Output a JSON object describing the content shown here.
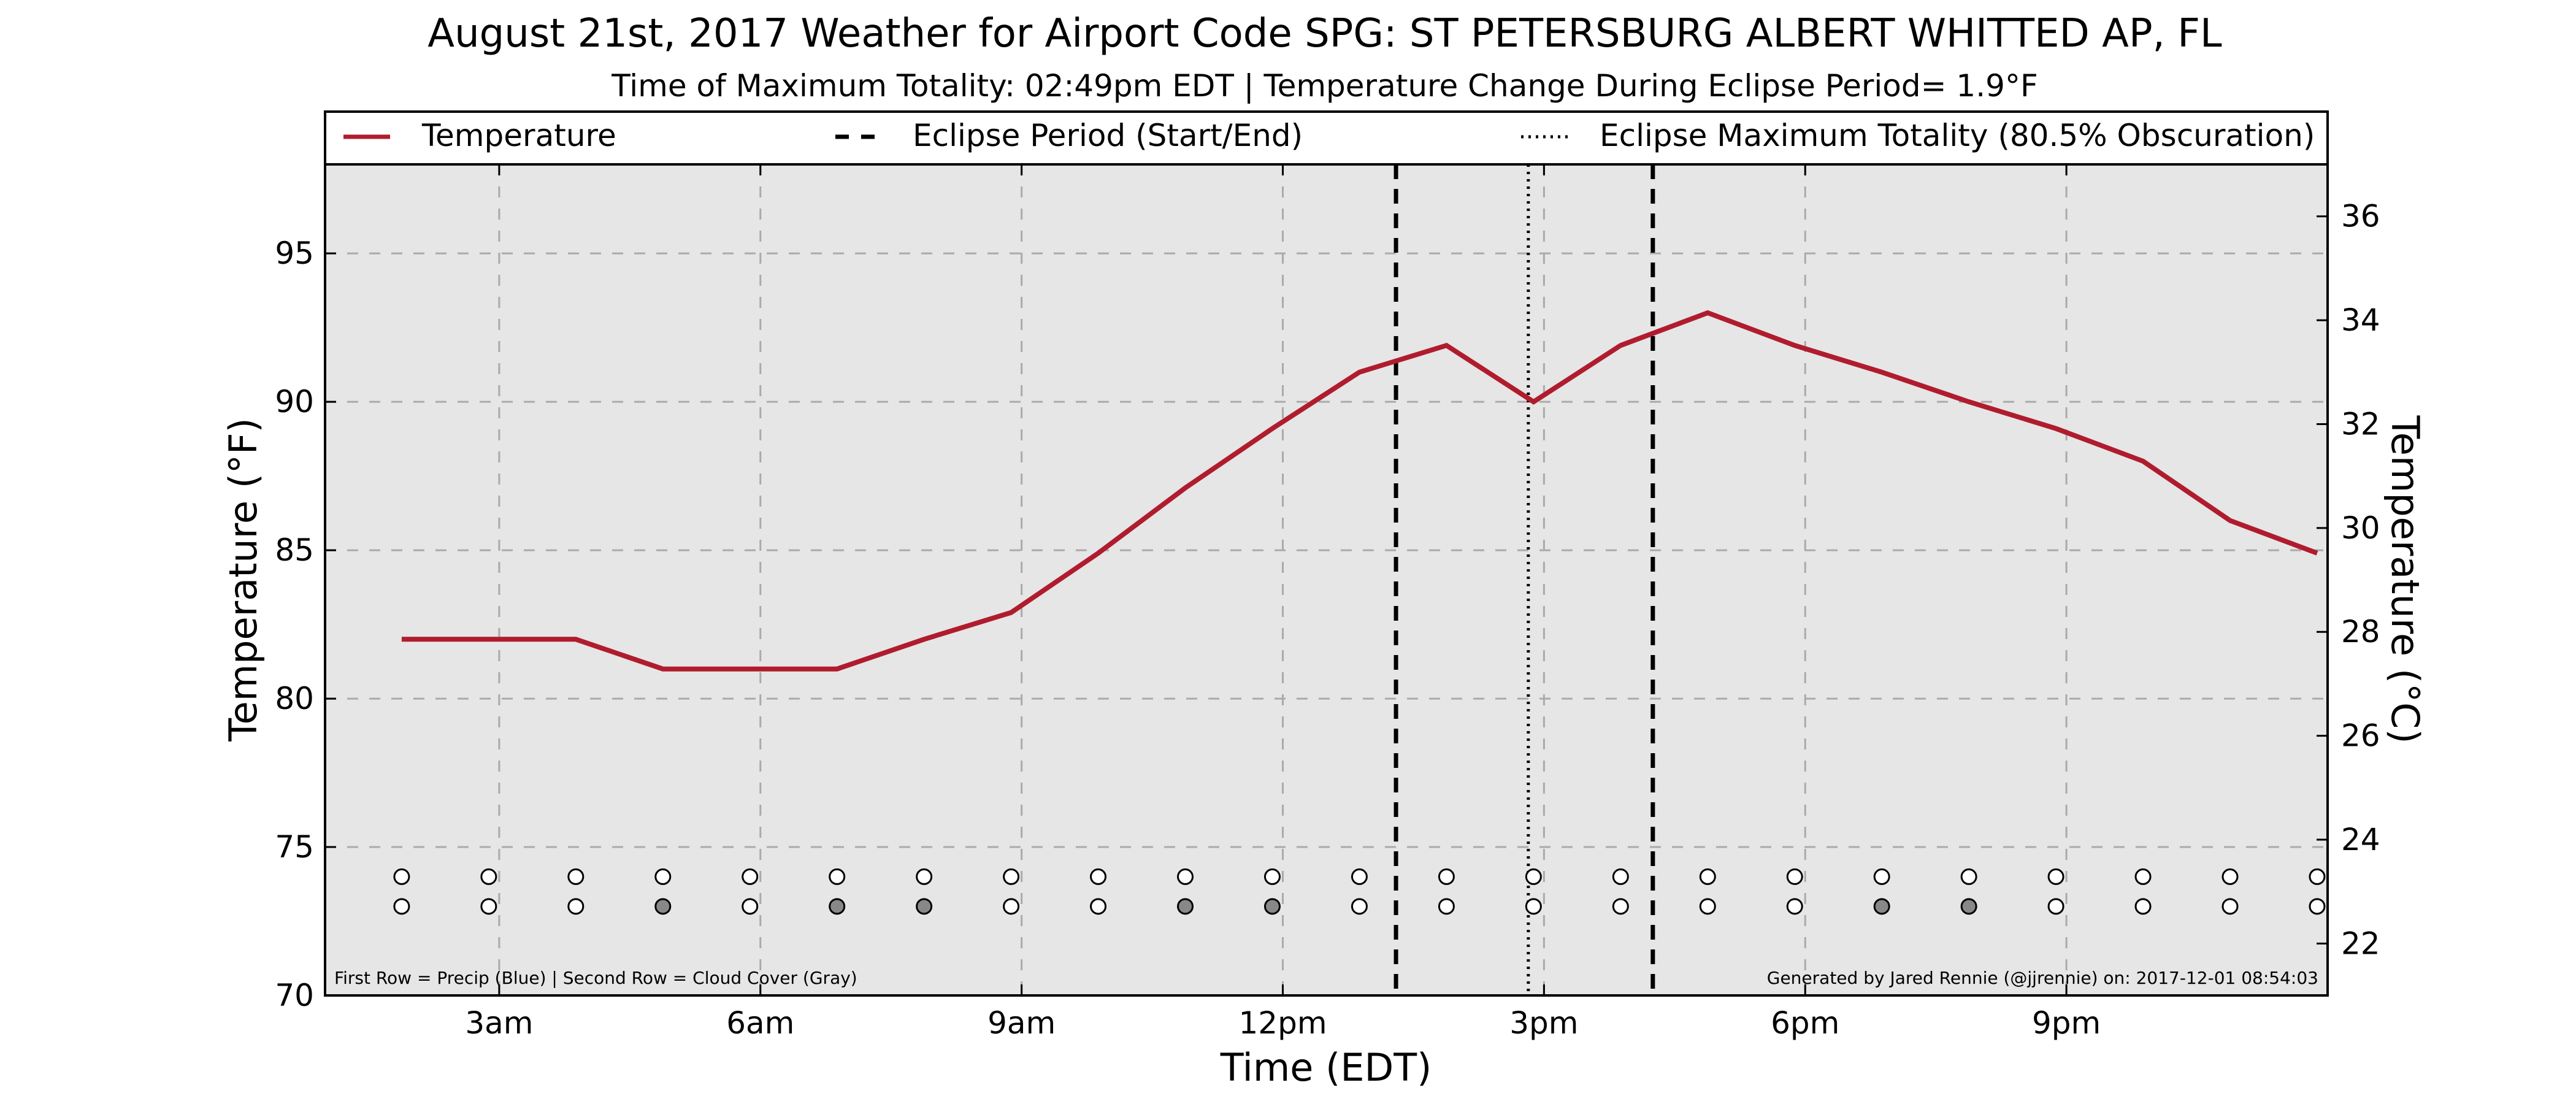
{
  "chart_data": {
    "type": "line",
    "title": "August 21st, 2017 Weather for Airport Code SPG: ST PETERSBURG ALBERT WHITTED AP, FL",
    "subtitle": "Time of Maximum Totality: 02:49pm EDT | Temperature Change During Eclipse Period= 1.9°F",
    "xlabel": "Time (EDT)",
    "ylabel_left": "Temperature (°F)",
    "ylabel_right": "Temperature (°C)",
    "xlim": [
      1.0,
      24.0
    ],
    "ylim_left": [
      70,
      98
    ],
    "ylim_right": [
      21,
      37
    ],
    "x_ticks": [
      {
        "x": 3,
        "label": "3am"
      },
      {
        "x": 6,
        "label": "6am"
      },
      {
        "x": 9,
        "label": "9am"
      },
      {
        "x": 12,
        "label": "12pm"
      },
      {
        "x": 15,
        "label": "3pm"
      },
      {
        "x": 18,
        "label": "6pm"
      },
      {
        "x": 21,
        "label": "9pm"
      }
    ],
    "y_ticks_left": [
      70,
      75,
      80,
      85,
      90,
      95
    ],
    "y_ticks_right": [
      22,
      24,
      26,
      28,
      30,
      32,
      34,
      36
    ],
    "grid": true,
    "legend_position": "top",
    "legend": [
      {
        "label": "Temperature",
        "style": "solid"
      },
      {
        "label": "Eclipse Period (Start/End)",
        "style": "dashed"
      },
      {
        "label": "Eclipse Maximum Totality (80.5% Obscuration)",
        "style": "dotted"
      }
    ],
    "series": [
      {
        "name": "Temperature",
        "color": "#b01c2e",
        "x": [
          1.88,
          2.88,
          3.88,
          4.88,
          5.88,
          6.88,
          7.88,
          8.88,
          9.88,
          10.88,
          11.88,
          12.88,
          13.88,
          14.88,
          15.88,
          16.88,
          17.88,
          18.88,
          19.88,
          20.88,
          21.88,
          22.88,
          23.88
        ],
        "y": [
          82,
          82,
          82,
          81,
          81,
          81,
          82,
          82.9,
          84.9,
          87.1,
          89.1,
          91.0,
          91.9,
          90.0,
          91.9,
          93.0,
          91.9,
          91.0,
          90.0,
          89.1,
          88.0,
          86.0,
          84.9
        ]
      }
    ],
    "eclipse_lines": [
      {
        "x": 13.3,
        "style": "dashed"
      },
      {
        "x": 14.82,
        "style": "dotted"
      },
      {
        "x": 16.25,
        "style": "dashed"
      }
    ],
    "marker_rows": {
      "x": [
        1.88,
        2.88,
        3.88,
        4.88,
        5.88,
        6.88,
        7.88,
        8.88,
        9.88,
        10.88,
        11.88,
        12.88,
        13.88,
        14.88,
        15.88,
        16.88,
        17.88,
        18.88,
        19.88,
        20.88,
        21.88,
        22.88,
        23.88
      ],
      "precip_y": 74,
      "cloud_y": 73,
      "precip_color": "#ffffff",
      "cloud_colors": [
        "#ffffff",
        "#ffffff",
        "#ffffff",
        "#888888",
        "#ffffff",
        "#888888",
        "#888888",
        "#ffffff",
        "#ffffff",
        "#888888",
        "#888888",
        "#ffffff",
        "#ffffff",
        "#ffffff",
        "#ffffff",
        "#ffffff",
        "#ffffff",
        "#888888",
        "#888888",
        "#ffffff",
        "#ffffff",
        "#ffffff",
        "#ffffff"
      ]
    },
    "footnote_left": "First Row = Precip (Blue) | Second Row = Cloud Cover (Gray)",
    "footnote_right": "Generated by Jared Rennie (@jjrennie) on: 2017-12-01 08:54:03",
    "colors": {
      "plot_background": "#e6e6e6",
      "temperature_line": "#b01c2e",
      "grid": "#aaaaaa"
    }
  }
}
